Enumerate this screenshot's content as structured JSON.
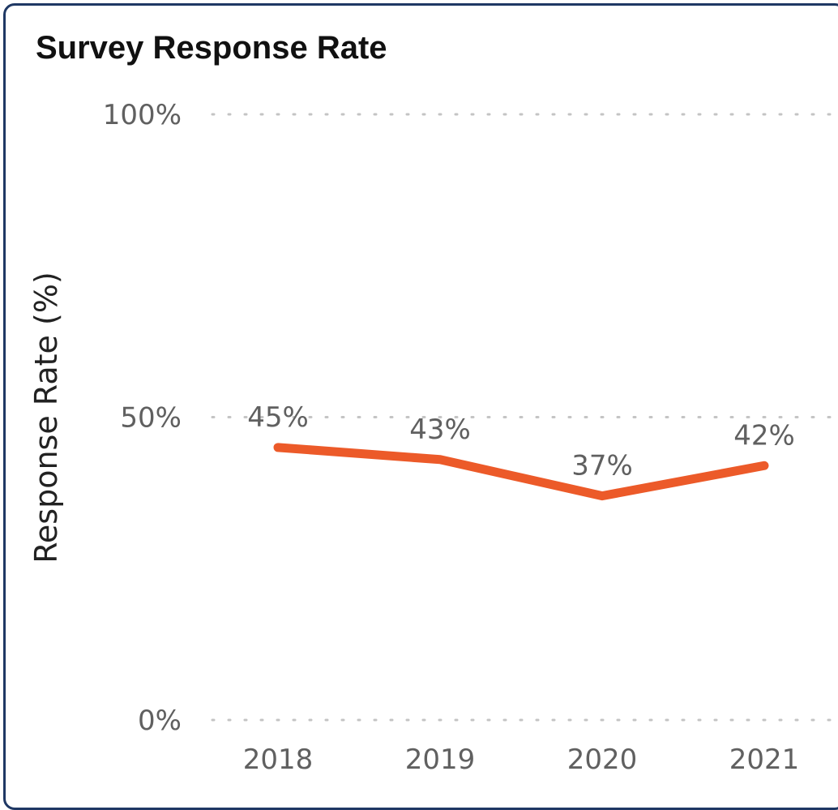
{
  "chart_data": {
    "type": "line",
    "title": "Survey Response Rate",
    "xlabel": "",
    "ylabel": "Response Rate (%)",
    "categories": [
      "2018",
      "2019",
      "2020",
      "2021"
    ],
    "series": [
      {
        "values": [
          45,
          43,
          37,
          42
        ],
        "data_labels": [
          "45%",
          "43%",
          "37%",
          "42%"
        ],
        "color": "#ec5a29"
      }
    ],
    "ylim": [
      0,
      100
    ],
    "yticks": [
      0,
      50,
      100
    ],
    "ytick_labels": [
      "0%",
      "50%",
      "100%"
    ],
    "grid": "horizontal dotted",
    "legend": "none"
  }
}
